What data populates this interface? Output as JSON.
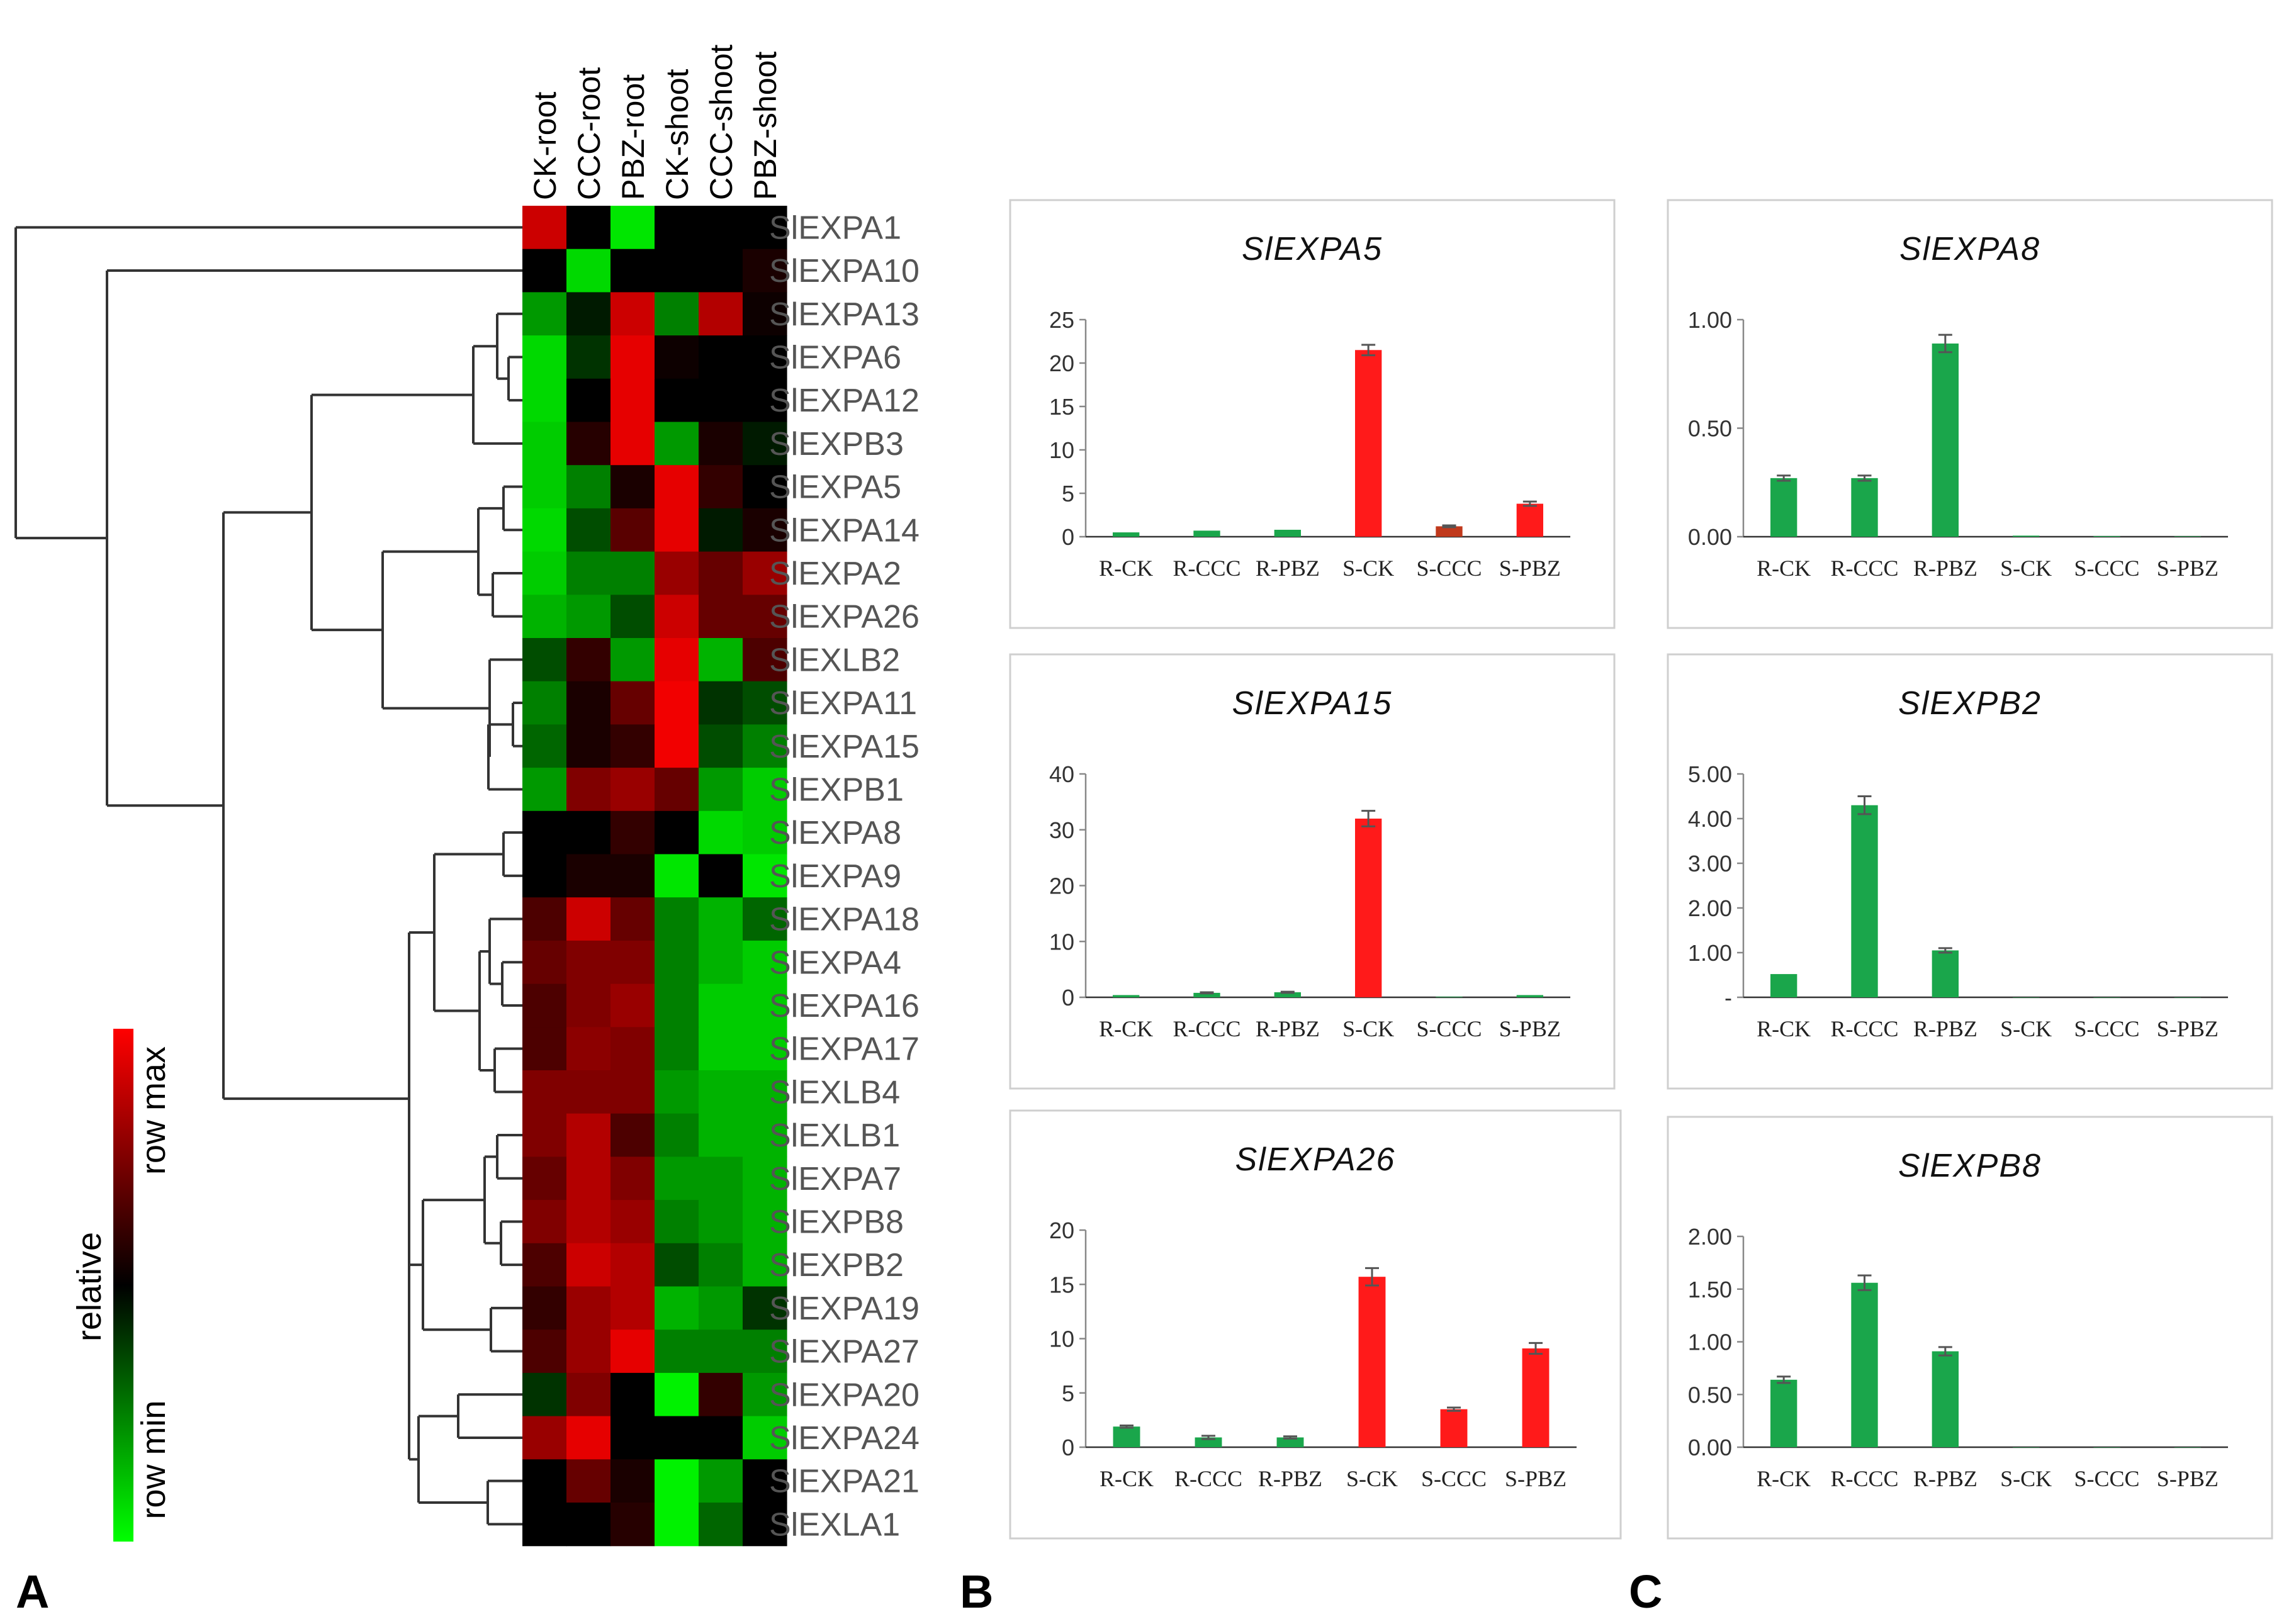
{
  "panel_labels": [
    "A",
    "B",
    "C"
  ],
  "colors": {
    "low": "#00ff00",
    "mid": "#000000",
    "high": "#ff0000",
    "bar_green": "#1aa64b",
    "bar_red": "#ff1a1a",
    "bar_darkred": "#c0391c",
    "panel_border": "#cfcfcf",
    "errorbar": "#555555"
  },
  "chart_data": [
    {
      "type": "heatmap",
      "panel": "A",
      "columns": [
        "CK-root",
        "CCC-root",
        "PBZ-root",
        "CK-shoot",
        "CCC-shoot",
        "PBZ-shoot"
      ],
      "rows": [
        "SlEXPA1",
        "SlEXPA10",
        "SlEXPA13",
        "SlEXPA6",
        "SlEXPA12",
        "SlEXPB3",
        "SlEXPA5",
        "SlEXPA14",
        "SlEXPA2",
        "SlEXPA26",
        "SlEXLB2",
        "SlEXPA11",
        "SlEXPA15",
        "SlEXPB1",
        "SlEXPA8",
        "SlEXPA9",
        "SlEXPA18",
        "SlEXPA4",
        "SlEXPA16",
        "SlEXPA17",
        "SlEXLB4",
        "SlEXLB1",
        "SlEXPA7",
        "SlEXPB8",
        "SlEXPB2",
        "SlEXPA19",
        "SlEXPA27",
        "SlEXPA20",
        "SlEXPA24",
        "SlEXPA21",
        "SlEXLA1"
      ],
      "values": [
        [
          0.8,
          0,
          -0.9,
          0,
          0,
          0
        ],
        [
          0,
          -0.85,
          0,
          0,
          0,
          0.1
        ],
        [
          -0.6,
          -0.1,
          0.8,
          -0.5,
          0.7,
          0.05
        ],
        [
          -0.85,
          -0.2,
          0.9,
          0.05,
          0,
          0
        ],
        [
          -0.85,
          0,
          0.9,
          0,
          0,
          0
        ],
        [
          -0.8,
          0.15,
          0.9,
          -0.6,
          0.1,
          -0.1
        ],
        [
          -0.8,
          -0.5,
          0.1,
          0.9,
          0.2,
          0
        ],
        [
          -0.85,
          -0.3,
          0.35,
          0.9,
          -0.1,
          0.1
        ],
        [
          -0.8,
          -0.5,
          -0.5,
          0.6,
          0.4,
          0.6
        ],
        [
          -0.7,
          -0.6,
          -0.3,
          0.8,
          0.4,
          0.4
        ],
        [
          -0.3,
          0.2,
          -0.6,
          0.9,
          -0.7,
          0.3
        ],
        [
          -0.5,
          0.1,
          0.4,
          0.95,
          -0.2,
          -0.3
        ],
        [
          -0.4,
          0.1,
          0.2,
          0.95,
          -0.3,
          -0.5
        ],
        [
          -0.6,
          0.5,
          0.6,
          0.4,
          -0.6,
          -0.8
        ],
        [
          0,
          0,
          0.2,
          0,
          -0.85,
          -0.8
        ],
        [
          0,
          0.1,
          0.1,
          -0.9,
          0,
          -0.9
        ],
        [
          0.3,
          0.8,
          0.4,
          -0.5,
          -0.7,
          -0.4
        ],
        [
          0.4,
          0.5,
          0.5,
          -0.5,
          -0.7,
          -0.8
        ],
        [
          0.3,
          0.5,
          0.6,
          -0.5,
          -0.8,
          -0.8
        ],
        [
          0.3,
          0.55,
          0.5,
          -0.5,
          -0.8,
          -0.8
        ],
        [
          0.5,
          0.5,
          0.5,
          -0.6,
          -0.7,
          -0.7
        ],
        [
          0.5,
          0.7,
          0.3,
          -0.5,
          -0.7,
          -0.7
        ],
        [
          0.4,
          0.7,
          0.5,
          -0.6,
          -0.6,
          -0.7
        ],
        [
          0.5,
          0.7,
          0.6,
          -0.5,
          -0.6,
          -0.7
        ],
        [
          0.3,
          0.8,
          0.7,
          -0.3,
          -0.5,
          -0.7
        ],
        [
          0.2,
          0.6,
          0.7,
          -0.7,
          -0.6,
          -0.2
        ],
        [
          0.3,
          0.6,
          0.9,
          -0.5,
          -0.5,
          -0.5
        ],
        [
          -0.2,
          0.5,
          0,
          -0.95,
          0.2,
          -0.6
        ],
        [
          0.6,
          0.9,
          0,
          0,
          0,
          -0.8
        ],
        [
          0,
          0.4,
          0.1,
          -0.95,
          -0.6,
          0
        ],
        [
          0,
          0,
          0.15,
          -0.95,
          -0.4,
          0
        ]
      ],
      "legend": {
        "title": "relative",
        "max_label": "row max",
        "min_label": "row min"
      },
      "dendrogram": true
    },
    {
      "type": "bar",
      "panel": "B",
      "title": "SlEXPA5",
      "categories": [
        "R-CK",
        "R-CCC",
        "R-PBZ",
        "S-CK",
        "S-CCC",
        "S-PBZ"
      ],
      "values": [
        0.5,
        0.7,
        0.8,
        21.5,
        1.2,
        3.8
      ],
      "errors": [
        0,
        0,
        0,
        0.6,
        0.1,
        0.25
      ],
      "bar_colors": [
        "green",
        "green",
        "green",
        "red",
        "darkred",
        "red"
      ],
      "ylim": [
        0,
        25
      ],
      "yticks": [
        "0",
        "5",
        "10",
        "15",
        "20",
        "25"
      ]
    },
    {
      "type": "bar",
      "panel": "B",
      "title": "SlEXPA15",
      "categories": [
        "R-CK",
        "R-CCC",
        "R-PBZ",
        "S-CK",
        "S-CCC",
        "S-PBZ"
      ],
      "values": [
        0.4,
        0.8,
        0.9,
        32,
        0.1,
        0.4
      ],
      "errors": [
        0,
        0.1,
        0.1,
        1.4,
        0,
        0
      ],
      "bar_colors": [
        "green",
        "green",
        "green",
        "red",
        "green",
        "green"
      ],
      "ylim": [
        0,
        40
      ],
      "yticks": [
        "0",
        "10",
        "20",
        "30",
        "40"
      ]
    },
    {
      "type": "bar",
      "panel": "B",
      "title": "SlEXPA26",
      "categories": [
        "R-CK",
        "R-CCC",
        "R-PBZ",
        "S-CK",
        "S-CCC",
        "S-PBZ"
      ],
      "values": [
        1.9,
        0.9,
        0.9,
        15.7,
        3.5,
        9.1
      ],
      "errors": [
        0.1,
        0.15,
        0.1,
        0.8,
        0.15,
        0.5
      ],
      "bar_colors": [
        "green",
        "green",
        "green",
        "red",
        "red",
        "red"
      ],
      "ylim": [
        0,
        20
      ],
      "yticks": [
        "0",
        "5",
        "10",
        "15",
        "20"
      ]
    },
    {
      "type": "bar",
      "panel": "C",
      "title": "SlEXPA8",
      "categories": [
        "R-CK",
        "R-CCC",
        "R-PBZ",
        "S-CK",
        "S-CCC",
        "S-PBZ"
      ],
      "values": [
        0.27,
        0.27,
        0.89,
        0.005,
        0.003,
        0.002
      ],
      "errors": [
        0.012,
        0.012,
        0.04,
        0,
        0,
        0
      ],
      "bar_colors": [
        "green",
        "green",
        "green",
        "green",
        "green",
        "green"
      ],
      "ylim": [
        0,
        1
      ],
      "yticks": [
        "0.00",
        "0.50",
        "1.00"
      ]
    },
    {
      "type": "bar",
      "panel": "C",
      "title": "SlEXPB2",
      "categories": [
        "R-CK",
        "R-CCC",
        "R-PBZ",
        "S-CK",
        "S-CCC",
        "S-PBZ"
      ],
      "values": [
        0.52,
        4.3,
        1.05,
        0,
        0,
        0
      ],
      "errors": [
        0,
        0.2,
        0.05,
        0,
        0,
        0
      ],
      "bar_colors": [
        "green",
        "green",
        "green",
        "green",
        "green",
        "green"
      ],
      "ylim": [
        0,
        5
      ],
      "yticks": [
        "-",
        "1.00",
        "2.00",
        "3.00",
        "4.00",
        "5.00"
      ]
    },
    {
      "type": "bar",
      "panel": "C",
      "title": "SlEXPB8",
      "categories": [
        "R-CK",
        "R-CCC",
        "R-PBZ",
        "S-CK",
        "S-CCC",
        "S-PBZ"
      ],
      "values": [
        0.64,
        1.56,
        0.91,
        0,
        0,
        0
      ],
      "errors": [
        0.03,
        0.07,
        0.04,
        0,
        0,
        0
      ],
      "bar_colors": [
        "green",
        "green",
        "green",
        "green",
        "green",
        "green"
      ],
      "ylim": [
        0,
        2
      ],
      "yticks": [
        "0.00",
        "0.50",
        "1.00",
        "1.50",
        "2.00"
      ]
    }
  ]
}
